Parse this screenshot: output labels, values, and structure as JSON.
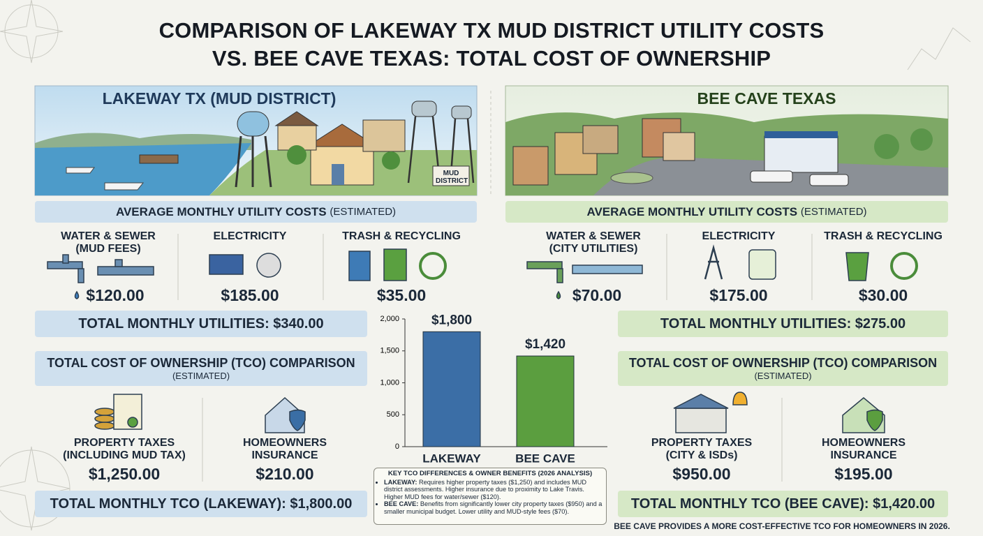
{
  "title_lines": [
    "COMPARISON OF LAKEWAY TX MUD DISTRICT UTILITY COSTS",
    "VS. BEE CAVE TEXAS: TOTAL COST OF OWNERSHIP"
  ],
  "left": {
    "heading": "LAKEWAY TX (MUD DISTRICT)",
    "sign": "MUD DISTRICT",
    "utilities_heading": "AVERAGE MONTHLY UTILITY COSTS",
    "utilities_note": "(ESTIMATED)",
    "utilities": [
      {
        "label": "WATER & SEWER",
        "sublabel": "(MUD FEES)",
        "value": "$120.00"
      },
      {
        "label": "ELECTRICITY",
        "value": "$185.00"
      },
      {
        "label": "TRASH & RECYCLING",
        "value": "$35.00"
      }
    ],
    "total_utilities": "TOTAL MONTHLY UTILITIES: $340.00",
    "tco_heading": "TOTAL COST OF OWNERSHIP (TCO) COMPARISON",
    "tco_note": "(ESTIMATED)",
    "tco": [
      {
        "label": "PROPERTY TAXES",
        "sublabel": "(INCLUDING MUD TAX)",
        "value": "$1,250.00"
      },
      {
        "label": "HOMEOWNERS",
        "sublabel": "INSURANCE",
        "value": "$210.00"
      }
    ],
    "total_tco": "TOTAL MONTHLY TCO (LAKEWAY): $1,800.00"
  },
  "right": {
    "heading": "BEE CAVE TEXAS",
    "utilities_heading": "AVERAGE MONTHLY UTILITY COSTS",
    "utilities_note": "(ESTIMATED)",
    "utilities": [
      {
        "label": "WATER & SEWER",
        "sublabel": "(CITY UTILITIES)",
        "value": "$70.00"
      },
      {
        "label": "ELECTRICITY",
        "value": "$175.00"
      },
      {
        "label": "TRASH & RECYCLING",
        "value": "$30.00"
      }
    ],
    "total_utilities": "TOTAL MONTHLY UTILITIES: $275.00",
    "tco_heading": "TOTAL COST OF OWNERSHIP (TCO) COMPARISON",
    "tco_note": "(ESTIMATED)",
    "tco": [
      {
        "label": "PROPERTY TAXES",
        "sublabel": "(CITY & ISDs)",
        "value": "$950.00"
      },
      {
        "label": "HOMEOWNERS",
        "sublabel": "INSURANCE",
        "value": "$195.00"
      }
    ],
    "total_tco": "TOTAL MONTHLY TCO (BEE CAVE): $1,420.00"
  },
  "notes": {
    "heading": "KEY TCO DIFFERENCES & OWNER BENEFITS (2026 ANALYSIS)",
    "items": [
      {
        "term": "LAKEWAY:",
        "text": "Requires higher property taxes ($1,250) and includes MUD district assessments. Higher insurance due to proximity to Lake Travis. Higher MUD fees for water/sewer ($120)."
      },
      {
        "term": "BEE CAVE:",
        "text": "Benefits from significantly lower city property taxes ($950) and a smaller municipal budget. Lower utility and MUD-style fees ($70)."
      }
    ]
  },
  "footer": "BEE CAVE PROVIDES A MORE COST-EFFECTIVE TCO FOR HOMEOWNERS IN 2026.",
  "chart_data": {
    "type": "bar",
    "categories": [
      "LAKEWAY",
      "BEE CAVE"
    ],
    "values": [
      1800,
      1420
    ],
    "value_labels": [
      "$1,800",
      "$1,420"
    ],
    "colors": [
      "#3b6ea6",
      "#5b9e3f"
    ],
    "ylim": [
      0,
      2000
    ],
    "yticks": [
      0,
      500,
      {
        "value": 1000,
        "label": "1,000"
      },
      {
        "value": 1500,
        "label": "1,500"
      },
      {
        "value": 2000,
        "label": "2,000"
      }
    ]
  }
}
